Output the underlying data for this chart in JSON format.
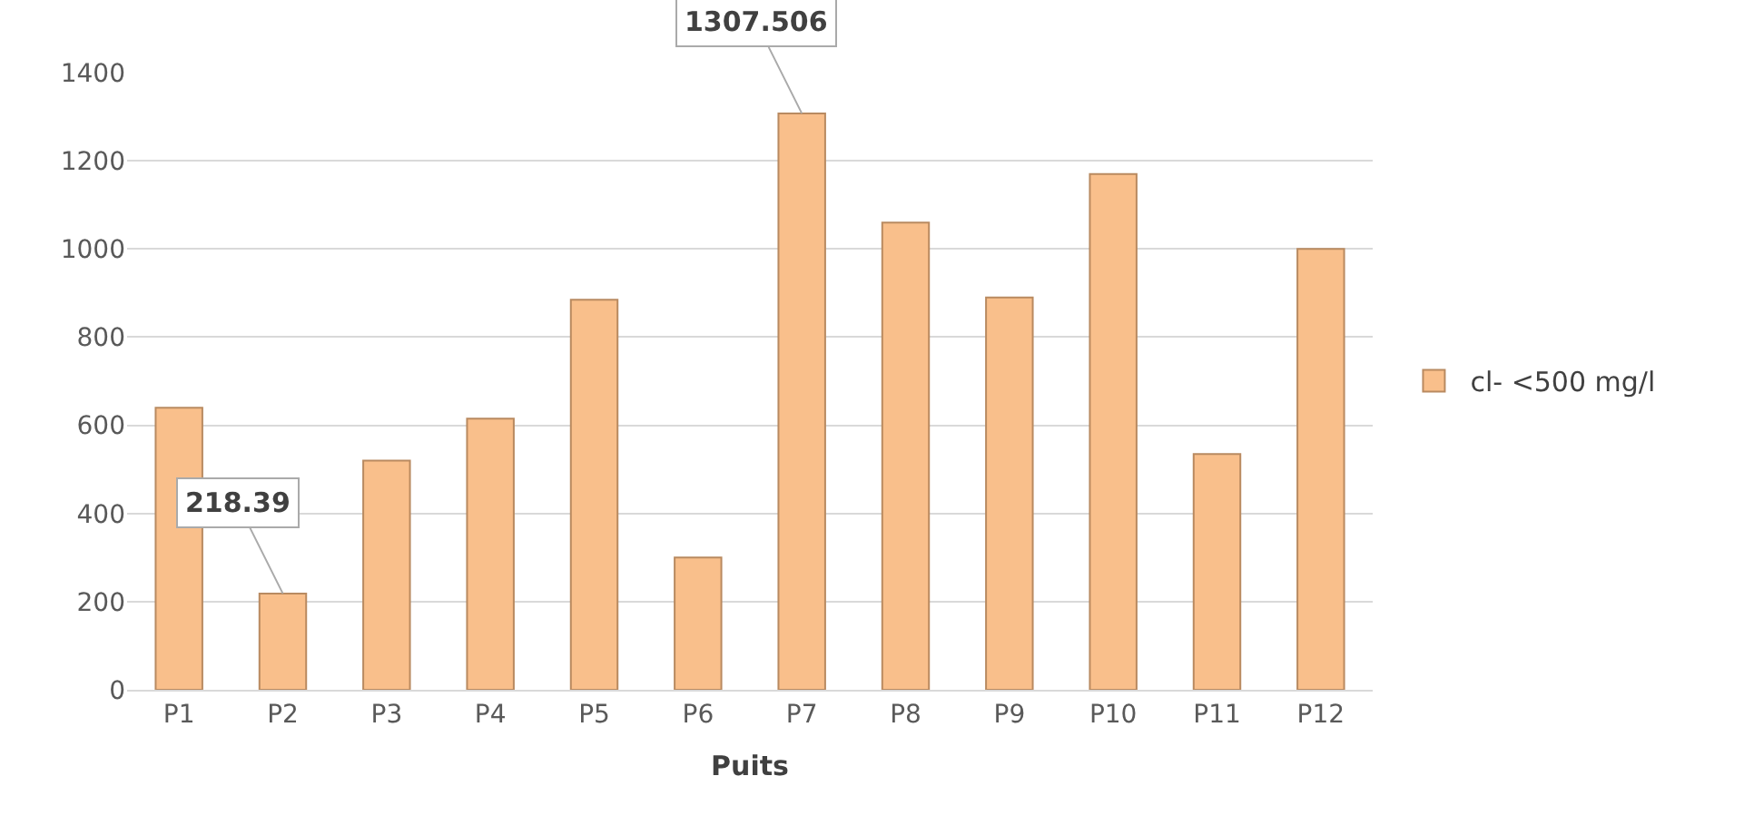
{
  "chart_data": {
    "type": "bar",
    "xlabel": "Puits",
    "categories": [
      "P1",
      "P2",
      "P3",
      "P4",
      "P5",
      "P6",
      "P7",
      "P8",
      "P9",
      "P10",
      "P11",
      "P12"
    ],
    "series": [
      {
        "name": "cl- <500 mg/l",
        "color": "#f9bf8b",
        "values": [
          640,
          218.39,
          520,
          615,
          885,
          300,
          1307.506,
          1060,
          890,
          1170,
          535,
          1000
        ],
        "value_labels": [
          null,
          "218.39",
          null,
          null,
          null,
          null,
          "1307.506",
          null,
          null,
          null,
          null,
          null
        ]
      }
    ],
    "ylim": [
      0,
      1400
    ],
    "yticks": [
      0,
      200,
      400,
      600,
      800,
      1000,
      1200,
      1400
    ],
    "grid": "y",
    "legend": "right"
  }
}
